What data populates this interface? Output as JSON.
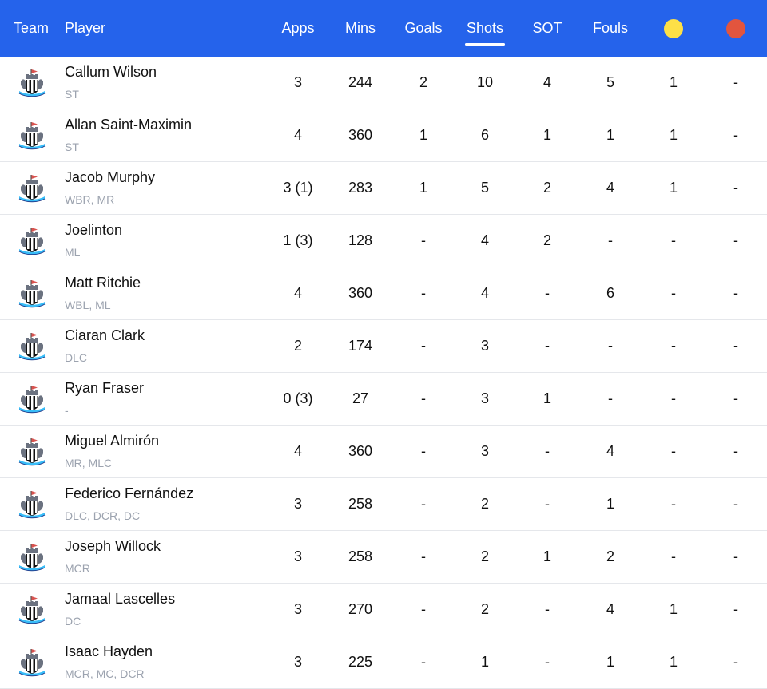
{
  "columns": {
    "team": "Team",
    "player": "Player",
    "apps": "Apps",
    "mins": "Mins",
    "goals": "Goals",
    "shots": "Shots",
    "sot": "SOT",
    "fouls": "Fouls",
    "yellow_icon": "yellow-card-icon",
    "red_icon": "red-card-icon",
    "active_sort": "shots"
  },
  "colors": {
    "header_bg": "#2563eb",
    "yellow_card": "#fde047",
    "red_card": "#e2553e"
  },
  "team_icon": "newcastle-crest-icon",
  "players": [
    {
      "name": "Callum Wilson",
      "pos": "ST",
      "apps": "3",
      "mins": "244",
      "goals": "2",
      "shots": "10",
      "sot": "4",
      "fouls": "5",
      "yellow": "1",
      "red": "-"
    },
    {
      "name": "Allan Saint-Maximin",
      "pos": "ST",
      "apps": "4",
      "mins": "360",
      "goals": "1",
      "shots": "6",
      "sot": "1",
      "fouls": "1",
      "yellow": "1",
      "red": "-"
    },
    {
      "name": "Jacob Murphy",
      "pos": "WBR, MR",
      "apps": "3 (1)",
      "mins": "283",
      "goals": "1",
      "shots": "5",
      "sot": "2",
      "fouls": "4",
      "yellow": "1",
      "red": "-"
    },
    {
      "name": "Joelinton",
      "pos": "ML",
      "apps": "1 (3)",
      "mins": "128",
      "goals": "-",
      "shots": "4",
      "sot": "2",
      "fouls": "-",
      "yellow": "-",
      "red": "-"
    },
    {
      "name": "Matt Ritchie",
      "pos": "WBL, ML",
      "apps": "4",
      "mins": "360",
      "goals": "-",
      "shots": "4",
      "sot": "-",
      "fouls": "6",
      "yellow": "-",
      "red": "-"
    },
    {
      "name": "Ciaran Clark",
      "pos": "DLC",
      "apps": "2",
      "mins": "174",
      "goals": "-",
      "shots": "3",
      "sot": "-",
      "fouls": "-",
      "yellow": "-",
      "red": "-"
    },
    {
      "name": "Ryan Fraser",
      "pos": "-",
      "apps": "0 (3)",
      "mins": "27",
      "goals": "-",
      "shots": "3",
      "sot": "1",
      "fouls": "-",
      "yellow": "-",
      "red": "-"
    },
    {
      "name": "Miguel Almirón",
      "pos": "MR, MLC",
      "apps": "4",
      "mins": "360",
      "goals": "-",
      "shots": "3",
      "sot": "-",
      "fouls": "4",
      "yellow": "-",
      "red": "-"
    },
    {
      "name": "Federico Fernández",
      "pos": "DLC, DCR, DC",
      "apps": "3",
      "mins": "258",
      "goals": "-",
      "shots": "2",
      "sot": "-",
      "fouls": "1",
      "yellow": "-",
      "red": "-"
    },
    {
      "name": "Joseph Willock",
      "pos": "MCR",
      "apps": "3",
      "mins": "258",
      "goals": "-",
      "shots": "2",
      "sot": "1",
      "fouls": "2",
      "yellow": "-",
      "red": "-"
    },
    {
      "name": "Jamaal Lascelles",
      "pos": "DC",
      "apps": "3",
      "mins": "270",
      "goals": "-",
      "shots": "2",
      "sot": "-",
      "fouls": "4",
      "yellow": "1",
      "red": "-"
    },
    {
      "name": "Isaac Hayden",
      "pos": "MCR, MC, DCR",
      "apps": "3",
      "mins": "225",
      "goals": "-",
      "shots": "1",
      "sot": "-",
      "fouls": "1",
      "yellow": "1",
      "red": "-"
    }
  ]
}
